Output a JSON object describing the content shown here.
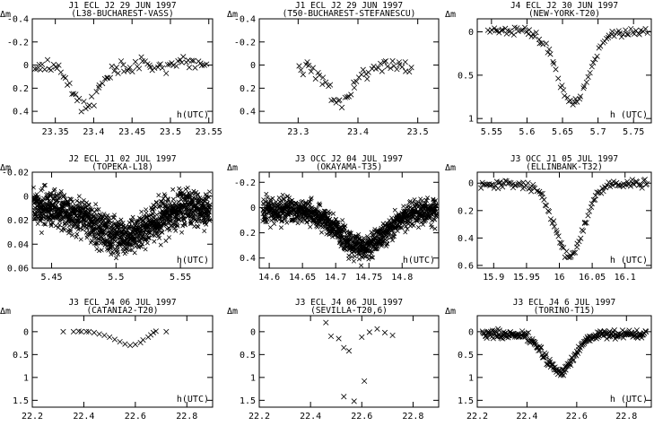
{
  "ylabel": "Δm",
  "chart_data": [
    {
      "type": "scatter",
      "title": "J1 ECL J2 29 JUN 1997",
      "subtitle": "(L38-BUCHAREST-VASS)",
      "xlabel": "h(UTC)",
      "xlim": [
        23.32,
        23.555
      ],
      "ylim": [
        0.5,
        -0.4
      ],
      "xticks": [
        "23.35",
        "23.4",
        "23.45",
        "23.5",
        "23.55"
      ],
      "yticks": [
        "-0.4",
        "-0.2",
        "0",
        "0.2",
        "0.4"
      ],
      "model": {
        "base": 0.0,
        "depth": 0.35,
        "center": 23.39,
        "width": 0.018,
        "noise": 0.045,
        "start": 23.322,
        "end": 23.548,
        "n": 85
      }
    },
    {
      "type": "scatter",
      "title": "J1 ECL J2 29 JUN 1997",
      "subtitle": "(T50-BUCHAREST-STEFANESCU)",
      "xlabel": "",
      "xlim": [
        23.235,
        23.535
      ],
      "ylim": [
        0.5,
        -0.4
      ],
      "xticks": [
        "23.3",
        "23.4",
        "23.5"
      ],
      "yticks": [
        "-0.4",
        "-0.2",
        "0",
        "0.2",
        "0.4"
      ],
      "model": {
        "base": 0.0,
        "depth": 0.32,
        "center": 23.37,
        "width": 0.022,
        "noise": 0.05,
        "start": 23.3,
        "end": 23.49,
        "n": 55
      }
    },
    {
      "type": "scatter",
      "title": "J4 ECL J2 30 JUN 1997",
      "subtitle": "(NEW-YORK-T20)",
      "xlabel": "h (UTC)",
      "xlim": [
        5.53,
        5.775
      ],
      "ylim": [
        1.05,
        -0.15
      ],
      "xticks": [
        "5.55",
        "5.6",
        "5.65",
        "5.7",
        "5.75"
      ],
      "yticks": [
        "0",
        "0.5",
        "1"
      ],
      "model": {
        "base": 0.0,
        "depth": 0.82,
        "center": 5.665,
        "width": 0.022,
        "noise": 0.035,
        "start": 5.545,
        "end": 5.77,
        "n": 90
      }
    },
    {
      "type": "scatter",
      "title": "J2 ECL J1 02 JUL 1997",
      "subtitle": "(TOPEKA-L18)",
      "xlabel": "h(UTC)",
      "xlim": [
        5.435,
        5.575
      ],
      "ylim": [
        0.06,
        -0.02
      ],
      "xticks": [
        "5.45",
        "5.5",
        "5.55"
      ],
      "yticks": [
        "-0.02",
        "0",
        "0.02",
        "0.04",
        "0.06"
      ],
      "model": {
        "base": 0.01,
        "depth": 0.025,
        "center": 5.505,
        "width": 0.02,
        "noise": 0.011,
        "start": 5.436,
        "end": 5.573,
        "n": 1300
      }
    },
    {
      "type": "scatter",
      "title": "J3 OCC J2 04 JUL 1997",
      "subtitle": "(OKAYAMA-T35)",
      "xlabel": "h(UTC)",
      "xlim": [
        14.585,
        14.855
      ],
      "ylim": [
        0.48,
        -0.28
      ],
      "xticks": [
        "14.6",
        "14.65",
        "14.7",
        "14.75",
        "14.8"
      ],
      "yticks": [
        "-0.2",
        "0",
        "0.2",
        "0.4"
      ],
      "model": {
        "base": 0.02,
        "depth": 0.3,
        "center": 14.74,
        "width": 0.035,
        "noise": 0.07,
        "start": 14.59,
        "end": 14.852,
        "n": 1100
      }
    },
    {
      "type": "scatter",
      "title": "J3 OCC J1 05 JUL 1997",
      "subtitle": "(ELLINBANK-T32)",
      "xlabel": "h (UTC)",
      "xlim": [
        15.875,
        16.14
      ],
      "ylim": [
        0.62,
        -0.08
      ],
      "xticks": [
        "15.9",
        "15.95",
        "16",
        "16.05",
        "16.1"
      ],
      "yticks": [
        "0",
        "0.2",
        "0.4",
        "0.6"
      ],
      "model": {
        "base": 0.01,
        "depth": 0.52,
        "center": 16.015,
        "width": 0.022,
        "noise": 0.022,
        "start": 15.88,
        "end": 16.135,
        "n": 130
      }
    },
    {
      "type": "scatter",
      "title": "J3 ECL J4 06 JUL 1997",
      "subtitle": "(CATANIA2-T20)",
      "xlabel": "h(UTC)",
      "xlim": [
        22.2,
        22.9
      ],
      "ylim": [
        1.65,
        -0.35
      ],
      "xticks": [
        "22.2",
        "22.4",
        "22.6",
        "22.8"
      ],
      "yticks": [
        "0",
        "0.5",
        "1",
        "1.5"
      ],
      "points": [
        [
          22.32,
          0.0
        ],
        [
          22.36,
          0.0
        ],
        [
          22.38,
          -0.01
        ],
        [
          22.39,
          0.0
        ],
        [
          22.41,
          0.0
        ],
        [
          22.42,
          0.0
        ],
        [
          22.44,
          0.02
        ],
        [
          22.46,
          0.05
        ],
        [
          22.48,
          0.08
        ],
        [
          22.5,
          0.12
        ],
        [
          22.52,
          0.17
        ],
        [
          22.54,
          0.22
        ],
        [
          22.56,
          0.27
        ],
        [
          22.58,
          0.3
        ],
        [
          22.6,
          0.28
        ],
        [
          22.62,
          0.24
        ],
        [
          22.63,
          0.18
        ],
        [
          22.65,
          0.12
        ],
        [
          22.66,
          0.07
        ],
        [
          22.67,
          0.02
        ],
        [
          22.68,
          -0.01
        ],
        [
          22.72,
          0.0
        ]
      ]
    },
    {
      "type": "scatter",
      "title": "J3 ECL J4 06 JUL 1997",
      "subtitle": "(SEVILLA-T20,6)",
      "xlabel": "",
      "xlim": [
        22.2,
        22.9
      ],
      "ylim": [
        1.65,
        -0.35
      ],
      "xticks": [
        "22.2",
        "22.4",
        "22.6",
        "22.8"
      ],
      "yticks": [
        "0",
        "0.5",
        "1",
        "1.5"
      ],
      "points": [
        [
          22.46,
          -0.2
        ],
        [
          22.48,
          0.1
        ],
        [
          22.51,
          0.15
        ],
        [
          22.53,
          0.35
        ],
        [
          22.55,
          0.42
        ],
        [
          22.53,
          1.42
        ],
        [
          22.57,
          1.52
        ],
        [
          22.61,
          1.08
        ],
        [
          22.6,
          0.12
        ],
        [
          22.63,
          0.01
        ],
        [
          22.66,
          -0.06
        ],
        [
          22.69,
          0.02
        ],
        [
          22.72,
          0.08
        ]
      ]
    },
    {
      "type": "scatter",
      "title": "J3 ECL J4 6 JUL 1997",
      "subtitle": "(TORINO-T15)",
      "xlabel": "h (UTC)",
      "xlim": [
        22.2,
        22.9
      ],
      "ylim": [
        1.65,
        -0.35
      ],
      "xticks": [
        "22.2",
        "22.4",
        "22.6",
        "22.8"
      ],
      "yticks": [
        "0",
        "0.5",
        "1",
        "1.5"
      ],
      "model": {
        "base": 0.05,
        "depth": 0.82,
        "center": 22.53,
        "width": 0.06,
        "noise": 0.07,
        "start": 22.22,
        "end": 22.88,
        "n": 240
      }
    }
  ]
}
